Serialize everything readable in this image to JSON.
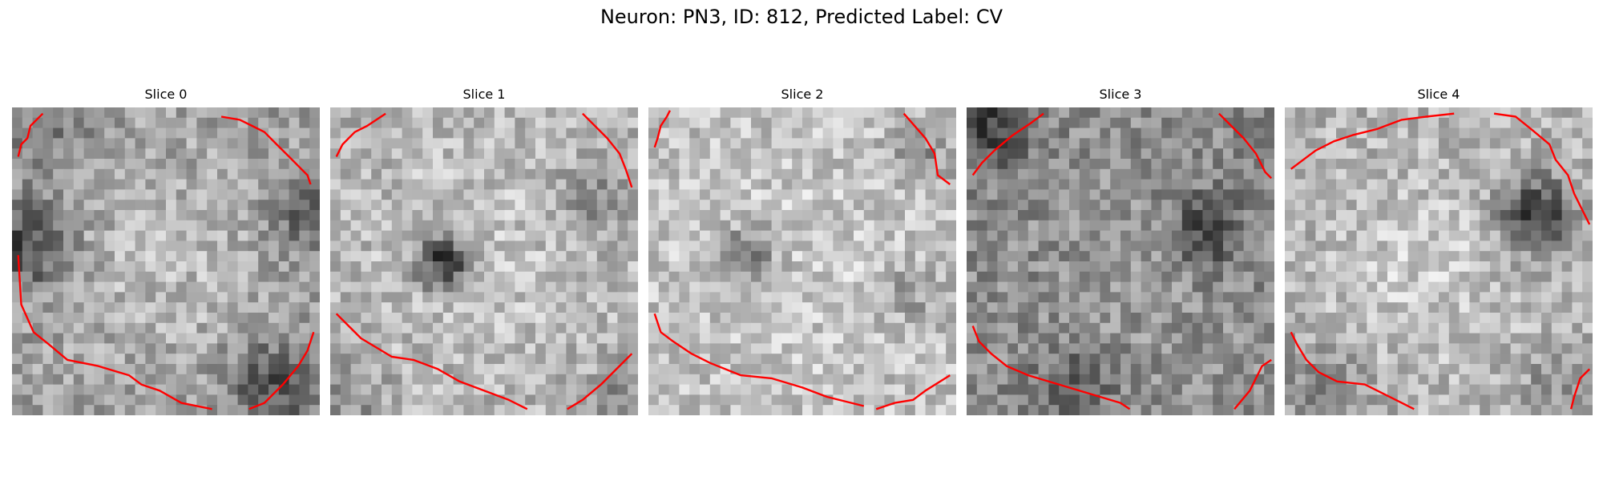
{
  "figure": {
    "title": "Neuron: PN3, ID: 812, Predicted Label: CV"
  },
  "panels": [
    {
      "title": "Slice 0"
    },
    {
      "title": "Slice 1"
    },
    {
      "title": "Slice 2"
    },
    {
      "title": "Slice 3"
    },
    {
      "title": "Slice 4"
    }
  ],
  "colors": {
    "contour": "#ff0000",
    "background": "#ffffff"
  }
}
